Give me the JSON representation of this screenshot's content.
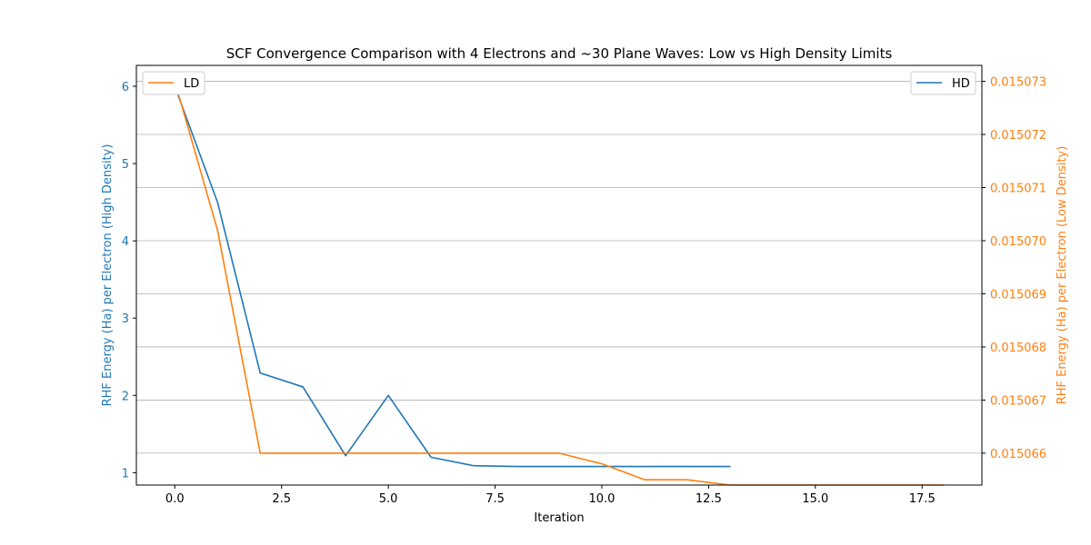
{
  "chart_data": {
    "type": "line",
    "title": "SCF Convergence Comparison with 4 Electrons and ~30 Plane Waves: Low vs High Density Limits",
    "xlabel": "Iteration",
    "ylabel_left": "RHF Energy (Ha) per Electron (High Density)",
    "ylabel_right": "RHF Energy (Ha) per Electron (Low Density)",
    "xlim": [
      -0.9,
      18.9
    ],
    "ylim_left": [
      0.84,
      6.27
    ],
    "ylim_right": [
      0.0150654,
      0.0150733
    ],
    "x_ticks": [
      0.0,
      2.5,
      5.0,
      7.5,
      10.0,
      12.5,
      15.0,
      17.5
    ],
    "x_tick_labels": [
      "0.0",
      "2.5",
      "5.0",
      "7.5",
      "10.0",
      "12.5",
      "15.0",
      "17.5"
    ],
    "y_left_ticks": [
      1,
      2,
      3,
      4,
      5,
      6
    ],
    "y_left_tick_labels": [
      "1",
      "2",
      "3",
      "4",
      "5",
      "6"
    ],
    "y_right_ticks": [
      0.015066,
      0.015067,
      0.015068,
      0.015069,
      0.01507,
      0.015071,
      0.015072,
      0.015073
    ],
    "y_right_tick_labels": [
      "0.015066",
      "0.015067",
      "0.015068",
      "0.015069",
      "0.015070",
      "0.015071",
      "0.015072",
      "0.015073"
    ],
    "grid": "horizontal lines at right-axis ticks",
    "series": [
      {
        "name": "HD",
        "axis": "left",
        "color": "#1f77b4",
        "x": [
          0,
          1,
          2,
          3,
          4,
          5,
          6,
          7,
          8,
          9,
          10,
          11,
          12,
          13
        ],
        "values": [
          6.0,
          4.5,
          2.29,
          2.11,
          1.22,
          2.0,
          1.2,
          1.09,
          1.08,
          1.08,
          1.08,
          1.08,
          1.08,
          1.08
        ]
      },
      {
        "name": "LD",
        "axis": "right",
        "color": "#ff7f0e",
        "x": [
          0,
          1,
          2,
          3,
          4,
          5,
          6,
          7,
          8,
          9,
          10,
          11,
          12,
          13,
          14,
          15,
          16,
          17,
          18
        ],
        "values": [
          0.015073,
          0.0150702,
          0.015066,
          0.015066,
          0.015066,
          0.015066,
          0.015066,
          0.015066,
          0.015066,
          0.015066,
          0.0150658,
          0.0150655,
          0.0150655,
          0.0150654,
          0.0150654,
          0.0150654,
          0.0150654,
          0.0150654,
          0.0150654
        ]
      }
    ],
    "legends": [
      {
        "label": "LD",
        "placement": "top-left",
        "series": "LD"
      },
      {
        "label": "HD",
        "placement": "top-right",
        "series": "HD"
      }
    ],
    "left_axis_color": "#1f77b4",
    "right_axis_color": "#ff7f0e"
  }
}
